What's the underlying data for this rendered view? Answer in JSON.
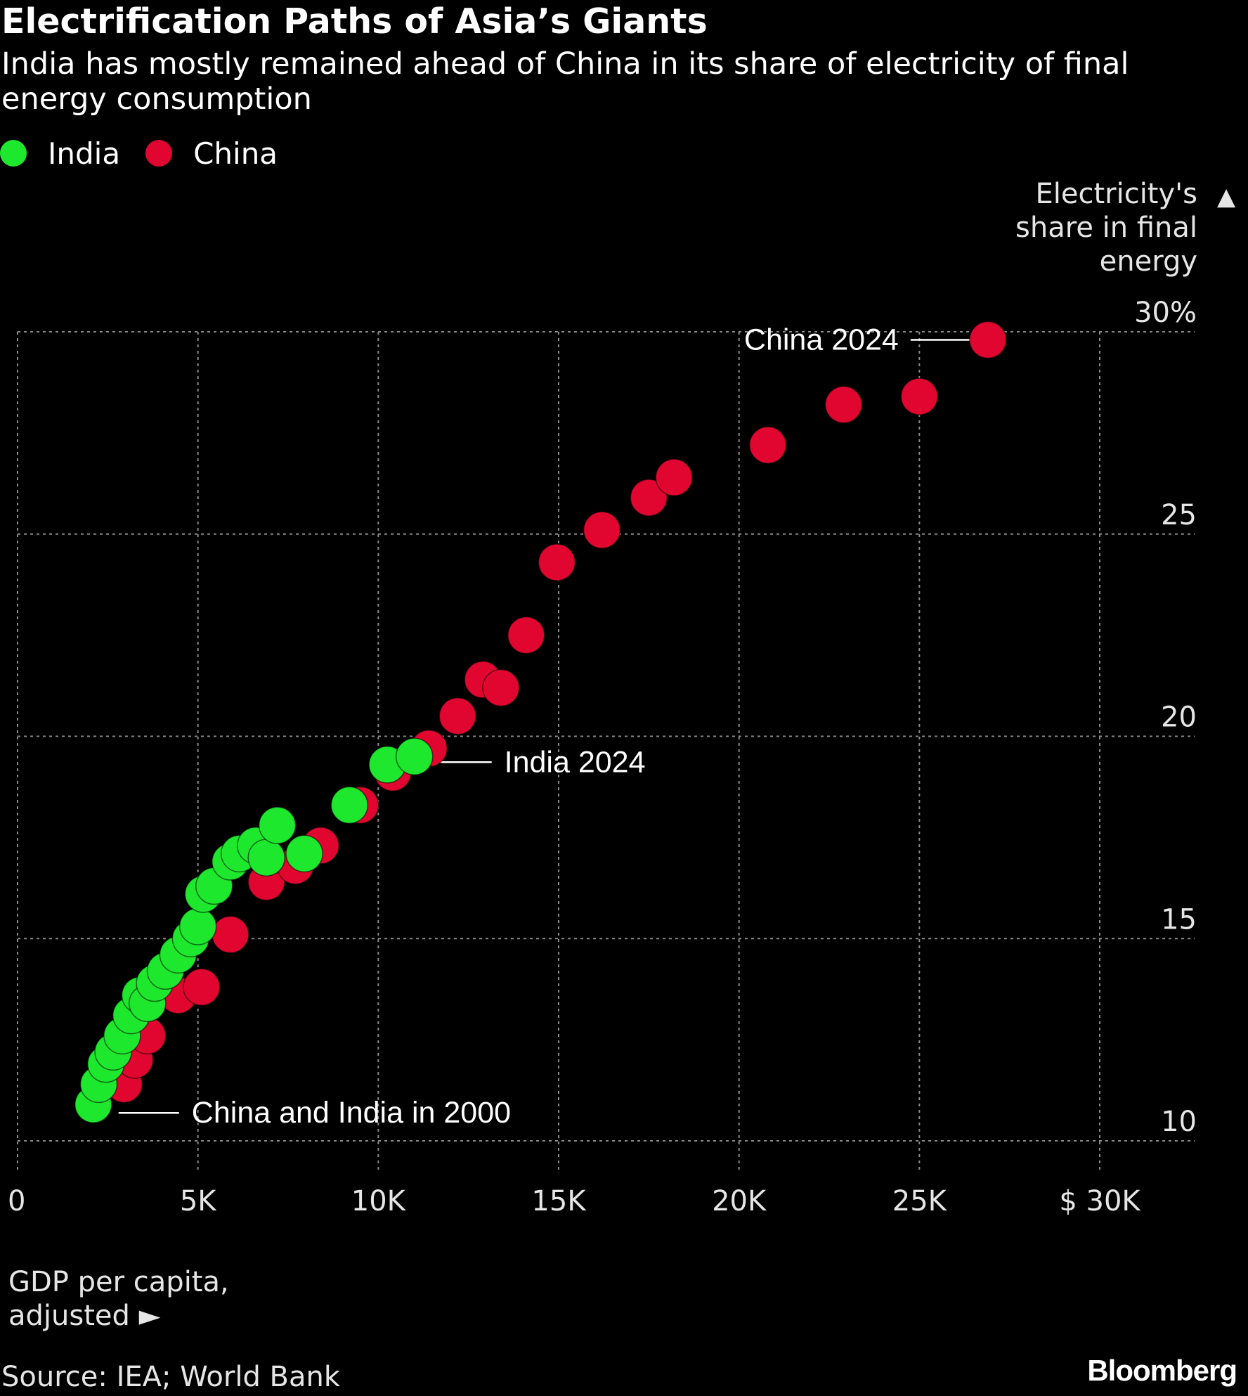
{
  "title": "Electrification Paths of Asia’s Giants",
  "subtitle": "India has mostly remained ahead of China in its share of electricity of final energy consumption",
  "source": "Source: IEA; World Bank",
  "brand": "Bloomberg",
  "colors": {
    "background": "#000000",
    "india": "#1ee82e",
    "china": "#e0062f",
    "grid": "#8a8a8a",
    "text": "#ffffff"
  },
  "legend": [
    {
      "label": "India",
      "color": "#1ee82e"
    },
    {
      "label": "China",
      "color": "#e0062f"
    }
  ],
  "chart_data": {
    "type": "scatter",
    "title": "Electrification Paths of Asia’s Giants",
    "subtitle": "India has mostly remained ahead of China in its share of electricity of final energy consumption",
    "xlabel_lines": [
      "GDP per capita,",
      "adjusted ►"
    ],
    "ylabel_lines": [
      "Electricity's",
      "share in final",
      "energy"
    ],
    "ylabel_arrow": "▲",
    "xlim": [
      0,
      32500
    ],
    "ylim": [
      10,
      30
    ],
    "x_ticks": [
      {
        "value": 0,
        "label": "0"
      },
      {
        "value": 5000,
        "label": "5K"
      },
      {
        "value": 10000,
        "label": "10K"
      },
      {
        "value": 15000,
        "label": "15K"
      },
      {
        "value": 20000,
        "label": "20K"
      },
      {
        "value": 25000,
        "label": "25K"
      },
      {
        "value": 30000,
        "label": "$ 30K"
      }
    ],
    "y_ticks": [
      {
        "value": 10,
        "label": "10"
      },
      {
        "value": 15,
        "label": "15"
      },
      {
        "value": 20,
        "label": "20"
      },
      {
        "value": 25,
        "label": "25"
      },
      {
        "value": 30,
        "label": "30%"
      }
    ],
    "grid": true,
    "legend_position": "top-left",
    "series": [
      {
        "name": "China",
        "color": "#e0062f",
        "points": [
          {
            "x": 2100,
            "y": 10.9
          },
          {
            "x": 2950,
            "y": 11.4
          },
          {
            "x": 3250,
            "y": 12.0
          },
          {
            "x": 3600,
            "y": 12.6
          },
          {
            "x": 4450,
            "y": 13.6
          },
          {
            "x": 5100,
            "y": 13.8
          },
          {
            "x": 5900,
            "y": 15.1
          },
          {
            "x": 6900,
            "y": 16.4
          },
          {
            "x": 7700,
            "y": 16.8
          },
          {
            "x": 8400,
            "y": 17.3
          },
          {
            "x": 9500,
            "y": 18.3
          },
          {
            "x": 10400,
            "y": 19.1
          },
          {
            "x": 11400,
            "y": 19.7
          },
          {
            "x": 12200,
            "y": 20.5
          },
          {
            "x": 12900,
            "y": 21.4
          },
          {
            "x": 13400,
            "y": 21.2
          },
          {
            "x": 14100,
            "y": 22.5
          },
          {
            "x": 14950,
            "y": 24.3
          },
          {
            "x": 16200,
            "y": 25.1
          },
          {
            "x": 17500,
            "y": 25.9
          },
          {
            "x": 18200,
            "y": 26.4
          },
          {
            "x": 20800,
            "y": 27.2
          },
          {
            "x": 22900,
            "y": 28.2
          },
          {
            "x": 25000,
            "y": 28.4
          },
          {
            "x": 26900,
            "y": 29.8
          }
        ]
      },
      {
        "name": "India",
        "color": "#1ee82e",
        "points": [
          {
            "x": 2100,
            "y": 10.9
          },
          {
            "x": 2250,
            "y": 11.4
          },
          {
            "x": 2450,
            "y": 11.9
          },
          {
            "x": 2650,
            "y": 12.2
          },
          {
            "x": 2900,
            "y": 12.6
          },
          {
            "x": 3150,
            "y": 13.1
          },
          {
            "x": 3400,
            "y": 13.6
          },
          {
            "x": 3600,
            "y": 13.4
          },
          {
            "x": 3800,
            "y": 13.9
          },
          {
            "x": 4100,
            "y": 14.2
          },
          {
            "x": 4450,
            "y": 14.6
          },
          {
            "x": 4800,
            "y": 15.0
          },
          {
            "x": 5000,
            "y": 15.3
          },
          {
            "x": 5150,
            "y": 16.1
          },
          {
            "x": 5450,
            "y": 16.3
          },
          {
            "x": 5900,
            "y": 16.9
          },
          {
            "x": 6150,
            "y": 17.1
          },
          {
            "x": 6600,
            "y": 17.3
          },
          {
            "x": 6900,
            "y": 17.0
          },
          {
            "x": 7200,
            "y": 17.8
          },
          {
            "x": 7950,
            "y": 17.1
          },
          {
            "x": 9200,
            "y": 18.3
          },
          {
            "x": 10250,
            "y": 19.3
          },
          {
            "x": 11000,
            "y": 19.5
          }
        ]
      }
    ],
    "annotations": [
      {
        "label": "China 2024",
        "x": 26900,
        "y": 29.8
      },
      {
        "label": "India 2024",
        "x": 11000,
        "y": 19.5
      },
      {
        "label": "China and India in 2000",
        "x": 2100,
        "y": 10.9
      }
    ]
  }
}
